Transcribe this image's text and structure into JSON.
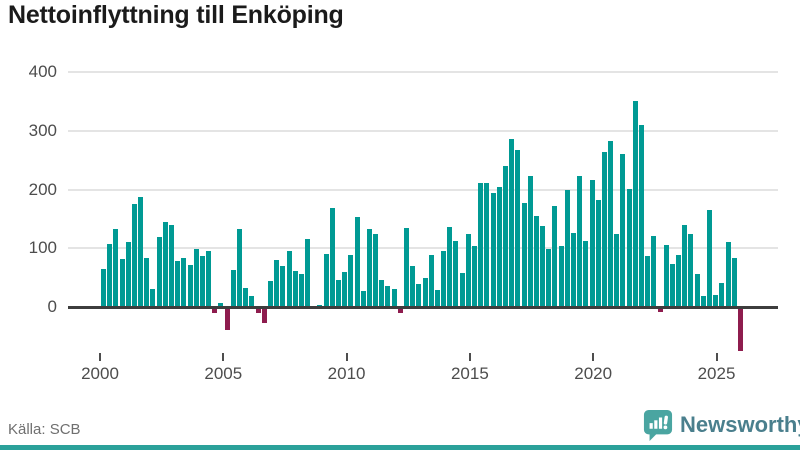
{
  "title": "Nettoinflyttning till Enköping",
  "source": "Källa: SCB",
  "branding": {
    "name": "Newsworthy"
  },
  "colors": {
    "bar_positive": "#009a94",
    "bar_negative": "#8e1c4e",
    "grid": "#e4e4e4",
    "axis": "#3d3d3d",
    "tick_label": "#4d4d4d",
    "title_text": "#1b1b1b",
    "source_text": "#6f6f6f",
    "brand_text": "#4a7f8d",
    "brand_icon": "#4aa5a1",
    "footer_strip": "#2ba19a"
  },
  "chart_data": {
    "type": "bar",
    "title": "Nettoinflyttning till Enköping",
    "xlabel": "",
    "ylabel": "",
    "x_start": "2000 Q1",
    "x_end": "2025 Q4",
    "period": "quarterly",
    "x_tick_labels": [
      "2000",
      "2005",
      "2010",
      "2015",
      "2020",
      "2025"
    ],
    "y_tick_labels": [
      "0",
      "100",
      "200",
      "300",
      "400"
    ],
    "y_ticks": [
      0,
      100,
      200,
      300,
      400
    ],
    "ylim": [
      -90,
      420
    ],
    "grid": true,
    "legend": false,
    "series": [
      {
        "name": "Nettoinflyttning",
        "values": [
          65,
          108,
          132,
          82,
          110,
          176,
          188,
          84,
          30,
          119,
          145,
          139,
          78,
          84,
          72,
          98,
          87,
          95,
          -11,
          6,
          -39,
          63,
          133,
          32,
          19,
          -11,
          -27,
          45,
          80,
          70,
          95,
          62,
          56,
          116,
          2,
          3,
          91,
          169,
          46,
          59,
          89,
          154,
          27,
          132,
          125,
          46,
          36,
          30,
          -10,
          135,
          70,
          40,
          50,
          88,
          29,
          95,
          137,
          112,
          58,
          125,
          104,
          211,
          211,
          194,
          205,
          240,
          286,
          268,
          177,
          223,
          155,
          138,
          99,
          172,
          104,
          200,
          126,
          223,
          112,
          217,
          182,
          264,
          282,
          124,
          261,
          201,
          350,
          310,
          86,
          121,
          -8,
          105,
          73,
          89,
          139,
          125,
          56,
          18,
          165,
          20,
          41,
          111,
          84,
          -75
        ]
      }
    ]
  }
}
